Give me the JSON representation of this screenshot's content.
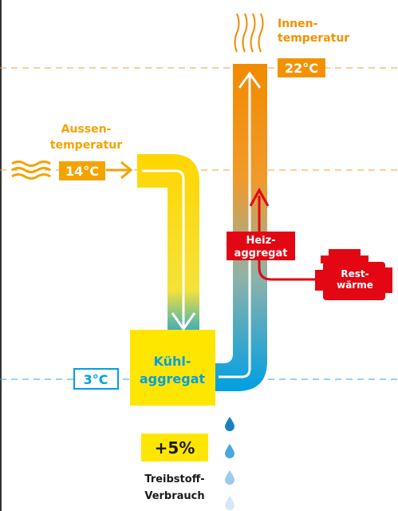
{
  "inside": {
    "label_lines": [
      "Innen-",
      "temperatur"
    ],
    "temperature": "22°C"
  },
  "outside": {
    "label_lines": [
      "Aussen-",
      "temperatur"
    ],
    "temperature": "14°C"
  },
  "heater": {
    "label_lines": [
      "Heiz-",
      "aggregat"
    ]
  },
  "waste_heat": {
    "label_lines": [
      "Rest-",
      "wärme"
    ]
  },
  "cooler": {
    "label_lines": [
      "Kühl-",
      "aggregat"
    ],
    "temperature": "3°C"
  },
  "consumption": {
    "value": "+5%",
    "label_lines": [
      "Treibstoff-",
      "Verbrauch"
    ]
  }
}
